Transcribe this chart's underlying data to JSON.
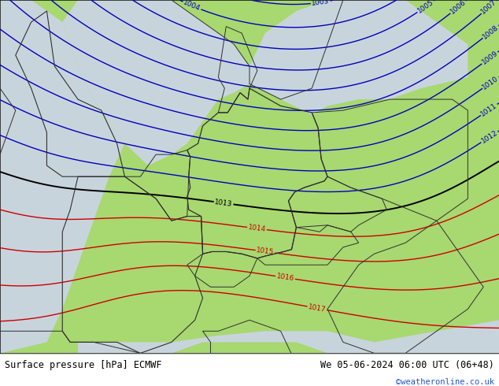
{
  "title_left": "Surface pressure [hPa] ECMWF",
  "title_right": "We 05-06-2024 06:00 UTC (06+48)",
  "credit": "©weatheronline.co.uk",
  "bg_color": "#a8d870",
  "sea_color": "#c8d4dc",
  "border_color": "#303030",
  "blue_contour_color": "#0000bb",
  "red_contour_color": "#cc0000",
  "black_contour_color": "#000000",
  "label_fontsize": 6.5,
  "footer_fontsize": 8.5,
  "credit_fontsize": 7.5,
  "credit_color": "#2255cc",
  "lon_min": -6,
  "lon_max": 26,
  "lat_min": 43,
  "lat_max": 59
}
